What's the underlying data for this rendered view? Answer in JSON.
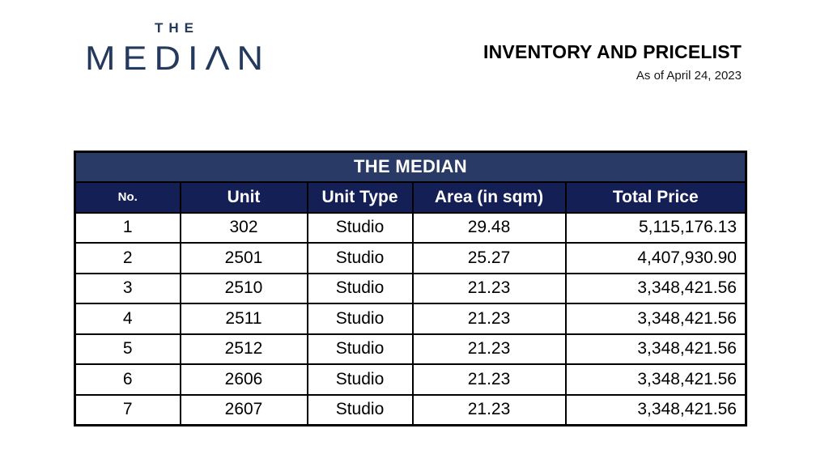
{
  "logo": {
    "top_text": "THE",
    "word_text": "MEDIΛN"
  },
  "doc_header": {
    "title": "INVENTORY AND PRICELIST",
    "date_line": "As of April 24, 2023"
  },
  "table": {
    "title": "THE MEDIAN",
    "columns": [
      "No.",
      "Unit",
      "Unit Type",
      "Area (in sqm)",
      "Total Price"
    ],
    "rows": [
      [
        "1",
        "302",
        "Studio",
        "29.48",
        "5,115,176.13"
      ],
      [
        "2",
        "2501",
        "Studio",
        "25.27",
        "4,407,930.90"
      ],
      [
        "3",
        "2510",
        "Studio",
        "21.23",
        "3,348,421.56"
      ],
      [
        "4",
        "2511",
        "Studio",
        "21.23",
        "3,348,421.56"
      ],
      [
        "5",
        "2512",
        "Studio",
        "21.23",
        "3,348,421.56"
      ],
      [
        "6",
        "2606",
        "Studio",
        "21.23",
        "3,348,421.56"
      ],
      [
        "7",
        "2607",
        "Studio",
        "21.23",
        "3,348,421.56"
      ]
    ]
  },
  "colors": {
    "logo_navy": "#24395e",
    "title_band": "#2a3a66",
    "header_band": "#141f55",
    "border": "#000000",
    "body_text": "#000000",
    "header_text": "#ffffff"
  }
}
